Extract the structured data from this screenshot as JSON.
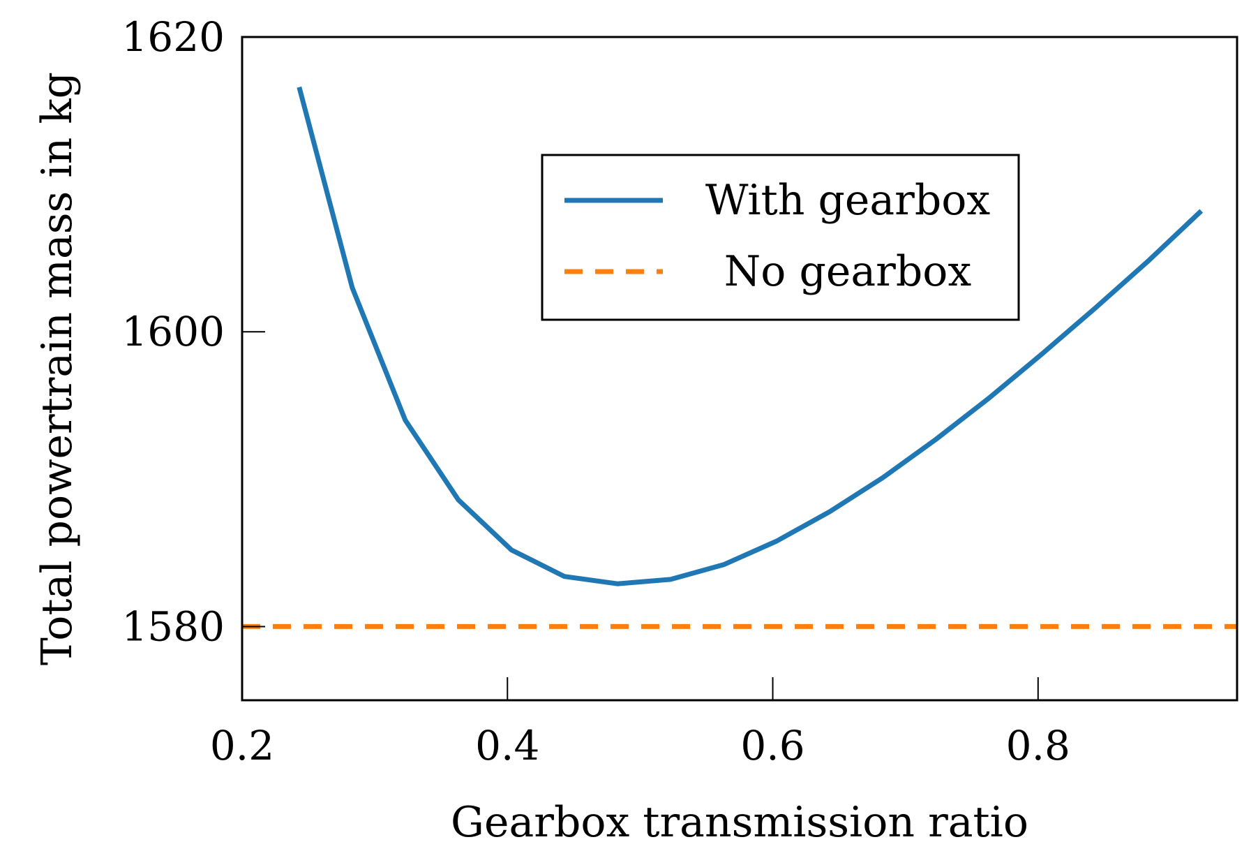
{
  "chart_data": {
    "type": "line",
    "title": "",
    "xlabel": "Gearbox transmission ratio",
    "ylabel": "Total powertrain mass in kg",
    "xlim": [
      0.2,
      0.95
    ],
    "ylim": [
      1575,
      1620
    ],
    "x_ticks": [
      0.2,
      0.4,
      0.6,
      0.8
    ],
    "y_ticks": [
      1580,
      1600,
      1620
    ],
    "x_tick_labels": [
      "0.2",
      "0.4",
      "0.6",
      "0.8"
    ],
    "y_tick_labels": [
      "1580",
      "1600",
      "1620"
    ],
    "grid": false,
    "legend_position": "top-right",
    "series": [
      {
        "name": "With gearbox",
        "style": "solid",
        "color": "#1f77b4",
        "x": [
          0.243,
          0.283,
          0.323,
          0.363,
          0.403,
          0.443,
          0.483,
          0.523,
          0.563,
          0.603,
          0.643,
          0.683,
          0.723,
          0.763,
          0.803,
          0.843,
          0.883,
          0.923
        ],
        "y": [
          1616.6,
          1603.0,
          1594.0,
          1588.6,
          1585.2,
          1583.4,
          1582.9,
          1583.2,
          1584.2,
          1585.8,
          1587.8,
          1590.1,
          1592.7,
          1595.5,
          1598.5,
          1601.6,
          1604.8,
          1608.2
        ]
      },
      {
        "name": "No gearbox",
        "style": "dashed",
        "color": "#ff7f0e",
        "x": [
          0.2,
          0.95
        ],
        "y": [
          1580,
          1580
        ]
      }
    ]
  }
}
